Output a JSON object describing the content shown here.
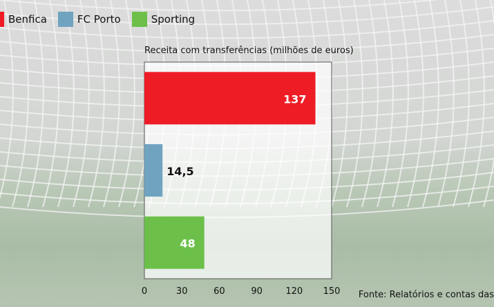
{
  "chart_data": {
    "type": "bar",
    "orientation": "horizontal",
    "title": "Receita com transferências (milhões de euros)",
    "categories": [
      "Benfica",
      "FC Porto",
      "Sporting"
    ],
    "values": [
      137,
      14.5,
      48
    ],
    "value_labels": [
      "137",
      "14,5",
      "48"
    ],
    "colors": [
      "#ee1c25",
      "#6fa3c0",
      "#6cc04a"
    ],
    "xlim": [
      0,
      150
    ],
    "xticks": [
      "0",
      "30",
      "60",
      "90",
      "120",
      "150"
    ],
    "grid": false,
    "legend": "top-left",
    "source": "Fonte: Relatórios e contas das"
  }
}
